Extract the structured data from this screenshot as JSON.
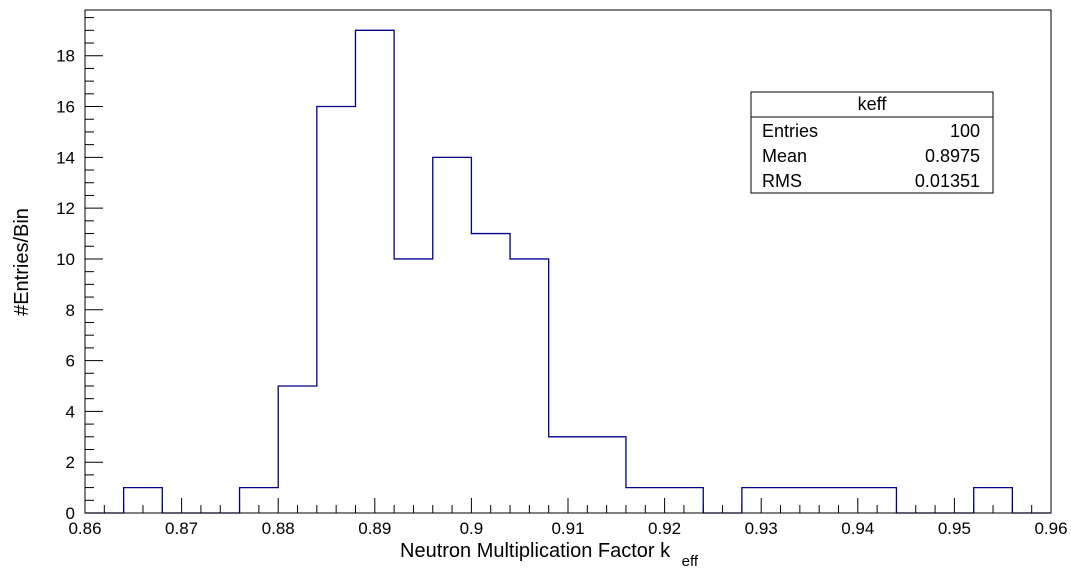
{
  "chart_data": {
    "type": "histogram",
    "title": "",
    "xlabel": "Neutron Multiplication Factor k",
    "xlabel_subscript": "eff",
    "ylabel": "#Entries/Bin",
    "xlim": [
      0.86,
      0.96
    ],
    "ylim": [
      0,
      19.8
    ],
    "grid": false,
    "x_ticks": [
      "0.86",
      "0.87",
      "0.88",
      "0.89",
      "0.9",
      "0.91",
      "0.92",
      "0.93",
      "0.94",
      "0.95",
      "0.96"
    ],
    "y_ticks": [
      "0",
      "2",
      "4",
      "6",
      "8",
      "10",
      "12",
      "14",
      "16",
      "18"
    ],
    "bin_width": 0.004,
    "bin_edges": [
      0.86,
      0.864,
      0.868,
      0.872,
      0.876,
      0.88,
      0.884,
      0.888,
      0.892,
      0.896,
      0.9,
      0.904,
      0.908,
      0.912,
      0.916,
      0.92,
      0.924,
      0.928,
      0.932,
      0.936,
      0.94,
      0.944,
      0.948,
      0.952,
      0.956,
      0.96
    ],
    "counts": [
      0,
      1,
      0,
      0,
      1,
      5,
      16,
      19,
      10,
      14,
      11,
      10,
      3,
      3,
      1,
      1,
      0,
      1,
      1,
      1,
      1,
      0,
      0,
      1,
      0
    ],
    "line_color": "#00008b",
    "stats_box": {
      "title": "keff",
      "rows": [
        {
          "label": "Entries",
          "value": "100"
        },
        {
          "label": "Mean",
          "value": "0.8975"
        },
        {
          "label": "RMS",
          "value": "0.01351"
        }
      ],
      "placement": "top-right"
    }
  }
}
